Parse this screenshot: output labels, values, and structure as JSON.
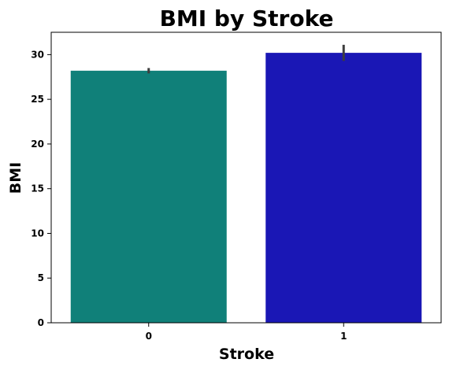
{
  "chart_data": {
    "type": "bar",
    "title": "BMI by Stroke",
    "xlabel": "Stroke",
    "ylabel": "BMI",
    "categories": [
      "0",
      "1"
    ],
    "values": [
      28.2,
      30.2
    ],
    "error_low": [
      27.9,
      29.3
    ],
    "error_high": [
      28.5,
      31.1
    ],
    "colors": [
      "#108079",
      "#1a17b5"
    ],
    "error_color": "#3d3d3d",
    "ylim": [
      0,
      32.5
    ],
    "yticks": [
      0,
      5,
      10,
      15,
      20,
      25,
      30
    ],
    "ytick_labels": [
      "0",
      "5",
      "10",
      "15",
      "20",
      "25",
      "30"
    ],
    "grid": false,
    "legend": "none"
  }
}
